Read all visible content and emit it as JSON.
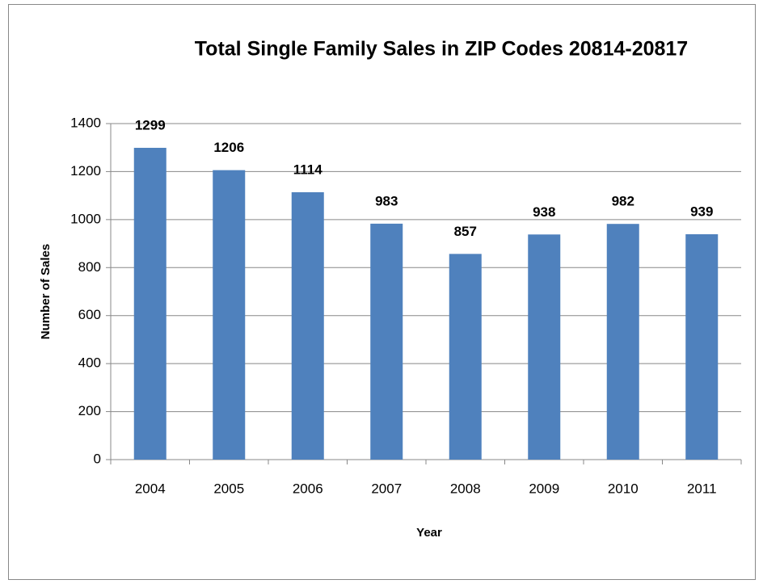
{
  "chart_data": {
    "type": "bar",
    "title": "Total Single Family Sales in ZIP Codes 20814-20817",
    "x_label": "Year",
    "y_label": "Number of Sales",
    "categories": [
      "2004",
      "2005",
      "2006",
      "2007",
      "2008",
      "2009",
      "2010",
      "2011"
    ],
    "values": [
      1299,
      1206,
      1114,
      983,
      857,
      938,
      982,
      939
    ],
    "color": "#4f81bd",
    "ylim": [
      0,
      1400
    ],
    "yticks": [
      0,
      200,
      400,
      600,
      800,
      1000,
      1200,
      1400
    ],
    "grid": true
  }
}
